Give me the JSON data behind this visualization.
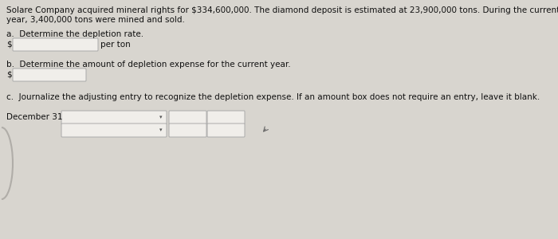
{
  "bg_color": "#d8d5cf",
  "text_color": "#111111",
  "intro_line1": "Solare Company acquired mineral rights for $334,600,000. The diamond deposit is estimated at 23,900,000 tons. During the current",
  "intro_line2": "year, 3,400,000 tons were mined and sold.",
  "part_a_label": "a.  Determine the depletion rate.",
  "part_a_suffix": "per ton",
  "part_b_label": "b.  Determine the amount of depletion expense for the current year.",
  "part_c_label": "c.  Journalize the adjusting entry to recognize the depletion expense. If an amount box does not require an entry, leave it blank.",
  "date_label": "December 31",
  "box_fill": "#f0eeea",
  "box_edge": "#aaaaaa",
  "box_fill_wide": "#f2f1ed",
  "font_size": 7.5
}
